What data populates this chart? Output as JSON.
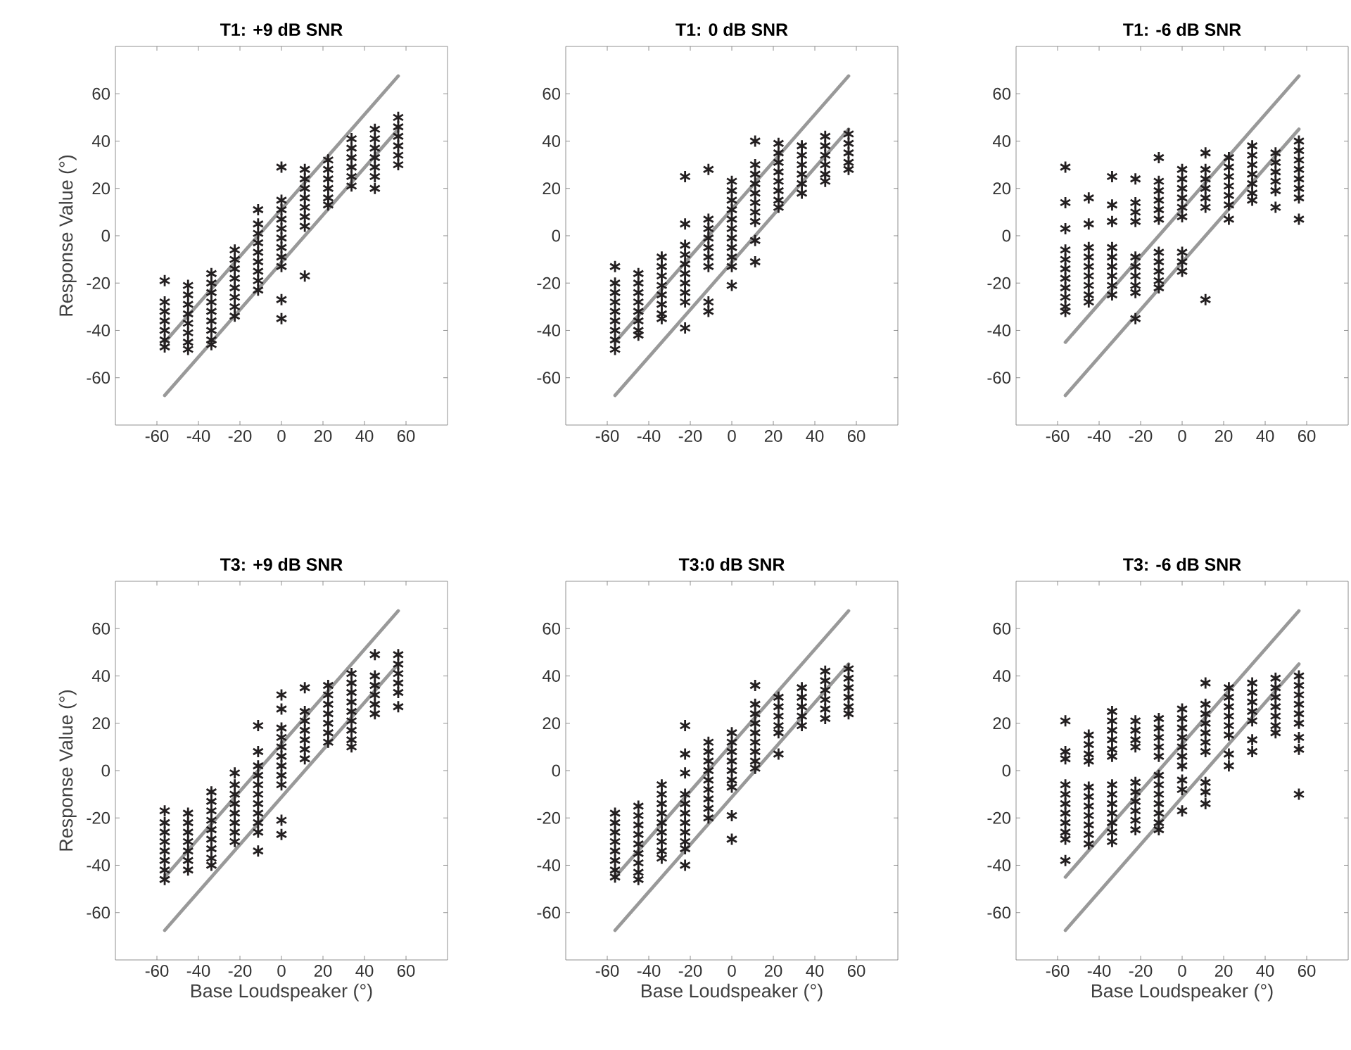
{
  "chart_data": [
    {
      "type": "scatter",
      "title": "T1: +9 dB SNR",
      "ylabel": "Response Value (°)",
      "color": "#231f20",
      "marker": "cross",
      "xlim": [
        -80,
        80
      ],
      "ylim": [
        -80,
        80
      ],
      "xticks": [
        -60,
        -40,
        -20,
        0,
        20,
        40,
        60
      ],
      "yticks": [
        -60,
        -40,
        -20,
        0,
        20,
        40,
        60
      ],
      "series": [
        {
          "x": [
            -56.25,
            -56.25,
            -56.25,
            -56.25,
            -56.25,
            -56.25,
            -56.25
          ],
          "values": [
            -19,
            -28,
            -32,
            -36,
            -40,
            -44,
            -47
          ]
        },
        {
          "x": [
            -45,
            -45,
            -45,
            -45,
            -45,
            -45,
            -45,
            -45
          ],
          "values": [
            -21,
            -25,
            -29,
            -33,
            -37,
            -41,
            -45,
            -48
          ]
        },
        {
          "x": [
            -33.75,
            -33.75,
            -33.75,
            -33.75,
            -33.75,
            -33.75,
            -33.75,
            -33.75,
            -33.75
          ],
          "values": [
            -16,
            -20,
            -24,
            -28,
            -32,
            -36,
            -40,
            -44,
            -46
          ]
        },
        {
          "x": [
            -22.5,
            -22.5,
            -22.5,
            -22.5,
            -22.5,
            -22.5,
            -22.5,
            -22.5
          ],
          "values": [
            -6,
            -10,
            -14,
            -18,
            -22,
            -26,
            -30,
            -34
          ]
        },
        {
          "x": [
            -11.25,
            -11.25,
            -11.25,
            -11.25,
            -11.25,
            -11.25,
            -11.25,
            -11.25,
            -11.25
          ],
          "values": [
            11,
            5,
            1,
            -3,
            -7,
            -11,
            -15,
            -19,
            -23
          ]
        },
        {
          "x": [
            0,
            0,
            0,
            0,
            0,
            0,
            0,
            0,
            0,
            0,
            0
          ],
          "values": [
            29,
            15,
            11,
            7,
            3,
            -1,
            -5,
            -9,
            -13,
            -27,
            -35
          ]
        },
        {
          "x": [
            11.25,
            11.25,
            11.25,
            11.25,
            11.25,
            11.25,
            11.25,
            11.25
          ],
          "values": [
            28,
            24,
            20,
            16,
            12,
            8,
            4,
            -17
          ]
        },
        {
          "x": [
            22.5,
            22.5,
            22.5,
            22.5,
            22.5,
            22.5
          ],
          "values": [
            32,
            28,
            24,
            20,
            16,
            13
          ]
        },
        {
          "x": [
            33.75,
            33.75,
            33.75,
            33.75,
            33.75,
            33.75
          ],
          "values": [
            41,
            37,
            33,
            29,
            25,
            21
          ]
        },
        {
          "x": [
            45,
            45,
            45,
            45,
            45,
            45,
            45
          ],
          "values": [
            45,
            41,
            37,
            33,
            29,
            25,
            20
          ]
        },
        {
          "x": [
            56.25,
            56.25,
            56.25,
            56.25,
            56.25,
            56.25
          ],
          "values": [
            50,
            46,
            42,
            38,
            34,
            30
          ]
        },
        {
          "type": "line",
          "marker": "none",
          "color": "#999999",
          "x": [
            -56.25,
            56.25
          ],
          "values": [
            -45,
            67.5
          ]
        },
        {
          "type": "line",
          "marker": "none",
          "color": "#999999",
          "x": [
            -56.25,
            56.25
          ],
          "values": [
            -67.5,
            45
          ]
        }
      ]
    },
    {
      "type": "scatter",
      "title": "T1: 0 dB SNR",
      "color": "#231f20",
      "marker": "cross",
      "xlim": [
        -80,
        80
      ],
      "ylim": [
        -80,
        80
      ],
      "xticks": [
        -60,
        -40,
        -20,
        0,
        20,
        40,
        60
      ],
      "yticks": [
        -60,
        -40,
        -20,
        0,
        20,
        40,
        60
      ],
      "series": [
        {
          "x": [
            -56.25,
            -56.25,
            -56.25,
            -56.25,
            -56.25,
            -56.25,
            -56.25,
            -56.25,
            -56.25
          ],
          "values": [
            -13,
            -20,
            -24,
            -28,
            -32,
            -36,
            -40,
            -44,
            -48
          ]
        },
        {
          "x": [
            -45,
            -45,
            -45,
            -45,
            -45,
            -45,
            -45,
            -45
          ],
          "values": [
            -16,
            -20,
            -24,
            -28,
            -32,
            -36,
            -40,
            -42
          ]
        },
        {
          "x": [
            -33.75,
            -33.75,
            -33.75,
            -33.75,
            -33.75,
            -33.75,
            -33.75,
            -33.75
          ],
          "values": [
            -9,
            -13,
            -17,
            -21,
            -25,
            -29,
            -33,
            -35
          ]
        },
        {
          "x": [
            -22.5,
            -22.5,
            -22.5,
            -22.5,
            -22.5,
            -22.5,
            -22.5,
            -22.5,
            -22.5,
            -22.5
          ],
          "values": [
            25,
            5,
            -4,
            -8,
            -12,
            -16,
            -20,
            -24,
            -28,
            -39
          ]
        },
        {
          "x": [
            -11.25,
            -11.25,
            -11.25,
            -11.25,
            -11.25,
            -11.25,
            -11.25,
            -11.25,
            -11.25
          ],
          "values": [
            28,
            7,
            3,
            -1,
            -5,
            -9,
            -13,
            -28,
            -32
          ]
        },
        {
          "x": [
            0,
            0,
            0,
            0,
            0,
            0,
            0,
            0,
            0,
            0,
            0
          ],
          "values": [
            23,
            19,
            15,
            11,
            7,
            3,
            -1,
            -5,
            -9,
            -13,
            -21
          ]
        },
        {
          "x": [
            11.25,
            11.25,
            11.25,
            11.25,
            11.25,
            11.25,
            11.25,
            11.25,
            11.25,
            11.25
          ],
          "values": [
            40,
            30,
            26,
            22,
            18,
            14,
            10,
            6,
            -2,
            -11
          ]
        },
        {
          "x": [
            22.5,
            22.5,
            22.5,
            22.5,
            22.5,
            22.5,
            22.5,
            22.5
          ],
          "values": [
            39,
            35,
            31,
            27,
            23,
            19,
            15,
            12
          ]
        },
        {
          "x": [
            33.75,
            33.75,
            33.75,
            33.75,
            33.75,
            33.75
          ],
          "values": [
            38,
            34,
            30,
            26,
            22,
            18
          ]
        },
        {
          "x": [
            45,
            45,
            45,
            45,
            45,
            45
          ],
          "values": [
            42,
            38,
            34,
            30,
            26,
            23
          ]
        },
        {
          "x": [
            56.25,
            56.25,
            56.25,
            56.25,
            56.25
          ],
          "values": [
            43,
            39,
            35,
            31,
            28
          ]
        },
        {
          "type": "line",
          "marker": "none",
          "color": "#999999",
          "x": [
            -56.25,
            56.25
          ],
          "values": [
            -45,
            67.5
          ]
        },
        {
          "type": "line",
          "marker": "none",
          "color": "#999999",
          "x": [
            -56.25,
            56.25
          ],
          "values": [
            -67.5,
            45
          ]
        }
      ]
    },
    {
      "type": "scatter",
      "title": "T1: -6 dB SNR",
      "color": "#231f20",
      "marker": "cross",
      "xlim": [
        -80,
        80
      ],
      "ylim": [
        -80,
        80
      ],
      "xticks": [
        -60,
        -40,
        -20,
        0,
        20,
        40,
        60
      ],
      "yticks": [
        -60,
        -40,
        -20,
        0,
        20,
        40,
        60
      ],
      "series": [
        {
          "x": [
            -56.25,
            -56.25,
            -56.25,
            -56.25,
            -56.25,
            -56.25,
            -56.25,
            -56.25,
            -56.25,
            -56.25,
            -56.25
          ],
          "values": [
            29,
            14,
            3,
            -6,
            -10,
            -14,
            -18,
            -22,
            -26,
            -30,
            -32
          ]
        },
        {
          "x": [
            -45,
            -45,
            -45,
            -45,
            -45,
            -45,
            -45,
            -45,
            -45
          ],
          "values": [
            16,
            5,
            -5,
            -9,
            -13,
            -17,
            -21,
            -25,
            -28
          ]
        },
        {
          "x": [
            -33.75,
            -33.75,
            -33.75,
            -33.75,
            -33.75,
            -33.75,
            -33.75,
            -33.75,
            -33.75
          ],
          "values": [
            25,
            13,
            6,
            -5,
            -9,
            -13,
            -17,
            -21,
            -25
          ]
        },
        {
          "x": [
            -22.5,
            -22.5,
            -22.5,
            -22.5,
            -22.5,
            -22.5,
            -22.5,
            -22.5,
            -22.5,
            -22.5
          ],
          "values": [
            24,
            14,
            10,
            6,
            -9,
            -13,
            -17,
            -21,
            -24,
            -35
          ]
        },
        {
          "x": [
            -11.25,
            -11.25,
            -11.25,
            -11.25,
            -11.25,
            -11.25,
            -11.25,
            -11.25,
            -11.25,
            -11.25,
            -11.25
          ],
          "values": [
            33,
            23,
            19,
            15,
            11,
            7,
            -7,
            -11,
            -15,
            -19,
            -22
          ]
        },
        {
          "x": [
            0,
            0,
            0,
            0,
            0,
            0,
            0,
            0,
            0
          ],
          "values": [
            28,
            24,
            20,
            16,
            12,
            8,
            -7,
            -11,
            -15
          ]
        },
        {
          "x": [
            11.25,
            11.25,
            11.25,
            11.25,
            11.25,
            11.25,
            11.25
          ],
          "values": [
            35,
            28,
            24,
            20,
            16,
            12,
            -27
          ]
        },
        {
          "x": [
            22.5,
            22.5,
            22.5,
            22.5,
            22.5,
            22.5,
            22.5
          ],
          "values": [
            33,
            29,
            25,
            21,
            17,
            13,
            7
          ]
        },
        {
          "x": [
            33.75,
            33.75,
            33.75,
            33.75,
            33.75,
            33.75,
            33.75
          ],
          "values": [
            38,
            34,
            30,
            26,
            22,
            18,
            15
          ]
        },
        {
          "x": [
            45,
            45,
            45,
            45,
            45,
            45
          ],
          "values": [
            35,
            31,
            27,
            23,
            19,
            12
          ]
        },
        {
          "x": [
            56.25,
            56.25,
            56.25,
            56.25,
            56.25,
            56.25,
            56.25,
            56.25
          ],
          "values": [
            40,
            36,
            32,
            28,
            24,
            20,
            16,
            7
          ]
        },
        {
          "type": "line",
          "marker": "none",
          "color": "#999999",
          "x": [
            -56.25,
            56.25
          ],
          "values": [
            -45,
            67.5
          ]
        },
        {
          "type": "line",
          "marker": "none",
          "color": "#999999",
          "x": [
            -56.25,
            56.25
          ],
          "values": [
            -67.5,
            45
          ]
        }
      ]
    },
    {
      "type": "scatter",
      "title": "T3: +9 dB SNR",
      "xlabel": "Base Loudspeaker (°)",
      "ylabel": "Response Value (°)",
      "color": "#231f20",
      "marker": "cross",
      "xlim": [
        -80,
        80
      ],
      "ylim": [
        -80,
        80
      ],
      "xticks": [
        -60,
        -40,
        -20,
        0,
        20,
        40,
        60
      ],
      "yticks": [
        -60,
        -40,
        -20,
        0,
        20,
        40,
        60
      ],
      "series": [
        {
          "x": [
            -56.25,
            -56.25,
            -56.25,
            -56.25,
            -56.25,
            -56.25,
            -56.25,
            -56.25
          ],
          "values": [
            -17,
            -22,
            -26,
            -30,
            -34,
            -38,
            -42,
            -46
          ]
        },
        {
          "x": [
            -45,
            -45,
            -45,
            -45,
            -45,
            -45,
            -45
          ],
          "values": [
            -18,
            -22,
            -26,
            -30,
            -34,
            -38,
            -42
          ]
        },
        {
          "x": [
            -33.75,
            -33.75,
            -33.75,
            -33.75,
            -33.75,
            -33.75,
            -33.75,
            -33.75,
            -33.75
          ],
          "values": [
            -9,
            -13,
            -17,
            -21,
            -25,
            -29,
            -33,
            -37,
            -40
          ]
        },
        {
          "x": [
            -22.5,
            -22.5,
            -22.5,
            -22.5,
            -22.5,
            -22.5,
            -22.5,
            -22.5
          ],
          "values": [
            -1,
            -6,
            -10,
            -14,
            -18,
            -22,
            -26,
            -30
          ]
        },
        {
          "x": [
            -11.25,
            -11.25,
            -11.25,
            -11.25,
            -11.25,
            -11.25,
            -11.25,
            -11.25,
            -11.25,
            -11.25,
            -11.25
          ],
          "values": [
            19,
            8,
            2,
            -2,
            -6,
            -10,
            -14,
            -18,
            -22,
            -26,
            -34
          ]
        },
        {
          "x": [
            0,
            0,
            0,
            0,
            0,
            0,
            0,
            0,
            0,
            0,
            0
          ],
          "values": [
            32,
            26,
            18,
            14,
            10,
            6,
            2,
            -2,
            -6,
            -21,
            -27
          ]
        },
        {
          "x": [
            11.25,
            11.25,
            11.25,
            11.25,
            11.25,
            11.25,
            11.25
          ],
          "values": [
            35,
            25,
            21,
            17,
            13,
            9,
            5
          ]
        },
        {
          "x": [
            22.5,
            22.5,
            22.5,
            22.5,
            22.5,
            22.5,
            22.5
          ],
          "values": [
            36,
            32,
            28,
            24,
            20,
            16,
            12
          ]
        },
        {
          "x": [
            33.75,
            33.75,
            33.75,
            33.75,
            33.75,
            33.75,
            33.75,
            33.75,
            33.75
          ],
          "values": [
            41,
            37,
            33,
            29,
            25,
            21,
            17,
            13,
            10
          ]
        },
        {
          "x": [
            45,
            45,
            45,
            45,
            45,
            45
          ],
          "values": [
            49,
            40,
            36,
            32,
            28,
            24
          ]
        },
        {
          "x": [
            56.25,
            56.25,
            56.25,
            56.25,
            56.25,
            56.25
          ],
          "values": [
            49,
            45,
            41,
            37,
            33,
            27
          ]
        },
        {
          "type": "line",
          "marker": "none",
          "color": "#999999",
          "x": [
            -56.25,
            56.25
          ],
          "values": [
            -45,
            67.5
          ]
        },
        {
          "type": "line",
          "marker": "none",
          "color": "#999999",
          "x": [
            -56.25,
            56.25
          ],
          "values": [
            -67.5,
            45
          ]
        }
      ]
    },
    {
      "type": "scatter",
      "title": "T3:0 dB SNR",
      "xlabel": "Base Loudspeaker (°)",
      "color": "#231f20",
      "marker": "cross",
      "xlim": [
        -80,
        80
      ],
      "ylim": [
        -80,
        80
      ],
      "xticks": [
        -60,
        -40,
        -20,
        0,
        20,
        40,
        60
      ],
      "yticks": [
        -60,
        -40,
        -20,
        0,
        20,
        40,
        60
      ],
      "series": [
        {
          "x": [
            -56.25,
            -56.25,
            -56.25,
            -56.25,
            -56.25,
            -56.25,
            -56.25,
            -56.25
          ],
          "values": [
            -18,
            -22,
            -26,
            -30,
            -34,
            -38,
            -42,
            -45
          ]
        },
        {
          "x": [
            -45,
            -45,
            -45,
            -45,
            -45,
            -45,
            -45,
            -45,
            -45
          ],
          "values": [
            -15,
            -19,
            -23,
            -27,
            -31,
            -35,
            -39,
            -43,
            -46
          ]
        },
        {
          "x": [
            -33.75,
            -33.75,
            -33.75,
            -33.75,
            -33.75,
            -33.75,
            -33.75,
            -33.75,
            -33.75
          ],
          "values": [
            -6,
            -10,
            -14,
            -18,
            -22,
            -26,
            -30,
            -34,
            -37
          ]
        },
        {
          "x": [
            -22.5,
            -22.5,
            -22.5,
            -22.5,
            -22.5,
            -22.5,
            -22.5,
            -22.5,
            -22.5,
            -22.5,
            -22.5
          ],
          "values": [
            19,
            7,
            -1,
            -10,
            -14,
            -18,
            -22,
            -26,
            -30,
            -33,
            -40
          ]
        },
        {
          "x": [
            -11.25,
            -11.25,
            -11.25,
            -11.25,
            -11.25,
            -11.25,
            -11.25,
            -11.25,
            -11.25
          ],
          "values": [
            12,
            8,
            4,
            0,
            -4,
            -8,
            -12,
            -16,
            -20
          ]
        },
        {
          "x": [
            0,
            0,
            0,
            0,
            0,
            0,
            0,
            0,
            0
          ],
          "values": [
            16,
            12,
            8,
            4,
            0,
            -4,
            -7,
            -19,
            -29
          ]
        },
        {
          "x": [
            11.25,
            11.25,
            11.25,
            11.25,
            11.25,
            11.25,
            11.25,
            11.25,
            11.25
          ],
          "values": [
            36,
            28,
            24,
            20,
            16,
            12,
            8,
            4,
            1
          ]
        },
        {
          "x": [
            22.5,
            22.5,
            22.5,
            22.5,
            22.5,
            22.5
          ],
          "values": [
            31,
            27,
            23,
            19,
            16,
            7
          ]
        },
        {
          "x": [
            33.75,
            33.75,
            33.75,
            33.75,
            33.75
          ],
          "values": [
            35,
            31,
            27,
            23,
            19
          ]
        },
        {
          "x": [
            45,
            45,
            45,
            45,
            45,
            45
          ],
          "values": [
            42,
            38,
            34,
            30,
            26,
            22
          ]
        },
        {
          "x": [
            56.25,
            56.25,
            56.25,
            56.25,
            56.25,
            56.25
          ],
          "values": [
            43,
            39,
            35,
            31,
            27,
            24
          ]
        },
        {
          "type": "line",
          "marker": "none",
          "color": "#999999",
          "x": [
            -56.25,
            56.25
          ],
          "values": [
            -45,
            67.5
          ]
        },
        {
          "type": "line",
          "marker": "none",
          "color": "#999999",
          "x": [
            -56.25,
            56.25
          ],
          "values": [
            -67.5,
            45
          ]
        }
      ]
    },
    {
      "type": "scatter",
      "title": "T3: -6 dB SNR",
      "xlabel": "Base Loudspeaker (°)",
      "color": "#231f20",
      "marker": "cross",
      "xlim": [
        -80,
        80
      ],
      "ylim": [
        -80,
        80
      ],
      "xticks": [
        -60,
        -40,
        -20,
        0,
        20,
        40,
        60
      ],
      "yticks": [
        -60,
        -40,
        -20,
        0,
        20,
        40,
        60
      ],
      "series": [
        {
          "x": [
            -56.25,
            -56.25,
            -56.25,
            -56.25,
            -56.25,
            -56.25,
            -56.25,
            -56.25,
            -56.25,
            -56.25,
            -56.25
          ],
          "values": [
            21,
            8,
            5,
            -6,
            -10,
            -14,
            -18,
            -22,
            -26,
            -29,
            -38
          ]
        },
        {
          "x": [
            -45,
            -45,
            -45,
            -45,
            -45,
            -45,
            -45,
            -45,
            -45,
            -45,
            -45
          ],
          "values": [
            15,
            11,
            7,
            4,
            -7,
            -11,
            -15,
            -19,
            -23,
            -27,
            -31
          ]
        },
        {
          "x": [
            -33.75,
            -33.75,
            -33.75,
            -33.75,
            -33.75,
            -33.75,
            -33.75,
            -33.75,
            -33.75,
            -33.75,
            -33.75,
            -33.75,
            -33.75
          ],
          "values": [
            25,
            21,
            17,
            13,
            9,
            6,
            -6,
            -10,
            -14,
            -18,
            -22,
            -26,
            -30
          ]
        },
        {
          "x": [
            -22.5,
            -22.5,
            -22.5,
            -22.5,
            -22.5,
            -22.5,
            -22.5,
            -22.5,
            -22.5,
            -22.5
          ],
          "values": [
            21,
            17,
            13,
            10,
            -5,
            -9,
            -13,
            -17,
            -21,
            -25
          ]
        },
        {
          "x": [
            -11.25,
            -11.25,
            -11.25,
            -11.25,
            -11.25,
            -11.25,
            -11.25,
            -11.25,
            -11.25,
            -11.25,
            -11.25,
            -11.25
          ],
          "values": [
            22,
            18,
            14,
            10,
            6,
            -2,
            -6,
            -10,
            -14,
            -18,
            -22,
            -25
          ]
        },
        {
          "x": [
            0,
            0,
            0,
            0,
            0,
            0,
            0,
            0,
            0,
            0
          ],
          "values": [
            26,
            22,
            18,
            14,
            10,
            6,
            2,
            -4,
            -8,
            -17
          ]
        },
        {
          "x": [
            11.25,
            11.25,
            11.25,
            11.25,
            11.25,
            11.25,
            11.25,
            11.25,
            11.25,
            11.25
          ],
          "values": [
            37,
            28,
            24,
            20,
            16,
            12,
            8,
            -5,
            -9,
            -14
          ]
        },
        {
          "x": [
            22.5,
            22.5,
            22.5,
            22.5,
            22.5,
            22.5,
            22.5,
            22.5
          ],
          "values": [
            35,
            31,
            27,
            23,
            19,
            15,
            7,
            2
          ]
        },
        {
          "x": [
            33.75,
            33.75,
            33.75,
            33.75,
            33.75,
            33.75,
            33.75
          ],
          "values": [
            37,
            33,
            29,
            25,
            21,
            13,
            8
          ]
        },
        {
          "x": [
            45,
            45,
            45,
            45,
            45,
            45,
            45
          ],
          "values": [
            39,
            35,
            31,
            27,
            23,
            19,
            16
          ]
        },
        {
          "x": [
            56.25,
            56.25,
            56.25,
            56.25,
            56.25,
            56.25,
            56.25,
            56.25,
            56.25
          ],
          "values": [
            40,
            36,
            32,
            28,
            24,
            20,
            14,
            9,
            -10
          ]
        },
        {
          "type": "line",
          "marker": "none",
          "color": "#999999",
          "x": [
            -56.25,
            56.25
          ],
          "values": [
            -45,
            67.5
          ]
        },
        {
          "type": "line",
          "marker": "none",
          "color": "#999999",
          "x": [
            -56.25,
            56.25
          ],
          "values": [
            -67.5,
            45
          ]
        }
      ]
    }
  ]
}
